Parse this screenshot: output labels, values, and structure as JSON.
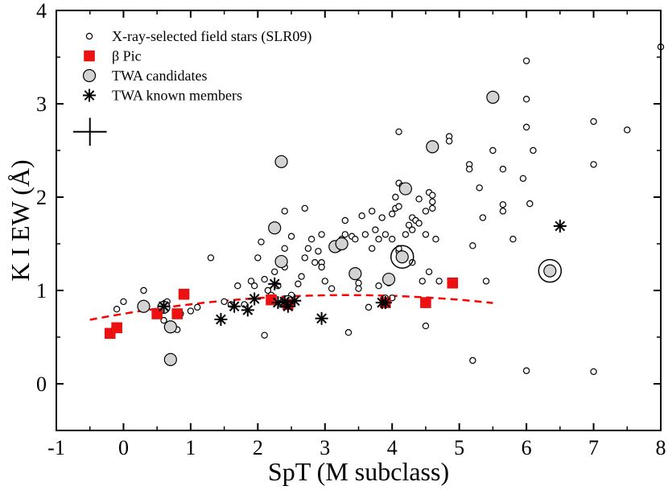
{
  "chart_data": {
    "type": "scatter",
    "xlabel": "SpT (M subclass)",
    "ylabel": "K I EW (Å)",
    "xlim": [
      -1,
      8
    ],
    "ylim": [
      -0.5,
      4
    ],
    "xticks": [
      -1,
      0,
      1,
      2,
      3,
      4,
      5,
      6,
      7,
      8
    ],
    "yticks": [
      0,
      1,
      2,
      3,
      4
    ],
    "xtick_labels": [
      "-1",
      "0",
      "1",
      "2",
      "3",
      "4",
      "5",
      "6",
      "7",
      "8"
    ],
    "ytick_labels": [
      "0",
      "1",
      "2",
      "3",
      "4"
    ],
    "legend": [
      {
        "label": "X-ray-selected field stars (SLR09)",
        "marker": "small-open-circle"
      },
      {
        "label": "β Pic",
        "marker": "red-square"
      },
      {
        "label": "TWA candidates",
        "marker": "gray-circle"
      },
      {
        "label": "TWA known members",
        "marker": "asterisk"
      }
    ],
    "error_bar": {
      "x": -0.5,
      "y": 2.7,
      "dx": 0.25,
      "dy": 0.15
    },
    "series": [
      {
        "name": "X-ray-selected field stars (SLR09)",
        "points": [
          [
            -0.1,
            0.8
          ],
          [
            0.0,
            0.88
          ],
          [
            0.3,
            1.0
          ],
          [
            0.6,
            0.68
          ],
          [
            0.65,
            0.88
          ],
          [
            0.8,
            0.58
          ],
          [
            0.85,
            0.75
          ],
          [
            1.0,
            0.78
          ],
          [
            1.1,
            0.82
          ],
          [
            1.3,
            1.35
          ],
          [
            1.5,
            0.88
          ],
          [
            1.6,
            0.85
          ],
          [
            1.7,
            1.05
          ],
          [
            1.8,
            0.85
          ],
          [
            1.9,
            1.1
          ],
          [
            1.95,
            1.05
          ],
          [
            2.0,
            1.35
          ],
          [
            2.05,
            1.52
          ],
          [
            2.1,
            0.52
          ],
          [
            2.1,
            1.12
          ],
          [
            2.15,
            1.0
          ],
          [
            2.2,
            0.95
          ],
          [
            2.25,
            1.2
          ],
          [
            2.3,
            1.05
          ],
          [
            2.35,
            0.85
          ],
          [
            2.4,
            1.25
          ],
          [
            2.4,
            1.45
          ],
          [
            2.4,
            1.85
          ],
          [
            2.5,
            1.58
          ],
          [
            2.5,
            0.95
          ],
          [
            2.6,
            1.07
          ],
          [
            2.65,
            1.15
          ],
          [
            2.7,
            1.35
          ],
          [
            2.7,
            1.88
          ],
          [
            2.75,
            1.45
          ],
          [
            2.8,
            1.55
          ],
          [
            2.85,
            1.3
          ],
          [
            2.9,
            1.42
          ],
          [
            2.95,
            1.3
          ],
          [
            2.95,
            1.6
          ],
          [
            3.0,
            1.1
          ],
          [
            3.1,
            1.02
          ],
          [
            3.2,
            1.45
          ],
          [
            3.25,
            1.55
          ],
          [
            3.3,
            1.6
          ],
          [
            3.3,
            1.75
          ],
          [
            3.35,
            0.55
          ],
          [
            3.4,
            1.58
          ],
          [
            3.45,
            1.55
          ],
          [
            3.5,
            1.08
          ],
          [
            3.5,
            1.02
          ],
          [
            3.55,
            1.8
          ],
          [
            3.6,
            1.6
          ],
          [
            3.65,
            0.82
          ],
          [
            3.7,
            1.45
          ],
          [
            3.7,
            1.85
          ],
          [
            3.75,
            1.65
          ],
          [
            3.8,
            1.55
          ],
          [
            3.8,
            1.05
          ],
          [
            3.85,
            1.78
          ],
          [
            3.9,
            1.6
          ],
          [
            3.9,
            0.92
          ],
          [
            4.0,
            1.55
          ],
          [
            4.0,
            1.82
          ],
          [
            4.05,
            1.88
          ],
          [
            4.05,
            2.0
          ],
          [
            4.1,
            1.42
          ],
          [
            4.1,
            1.45
          ],
          [
            4.1,
            1.9
          ],
          [
            4.1,
            2.15
          ],
          [
            4.15,
            2.12
          ],
          [
            4.2,
            1.6
          ],
          [
            4.25,
            1.7
          ],
          [
            4.3,
            1.78
          ],
          [
            4.3,
            1.3
          ],
          [
            4.3,
            1.65
          ],
          [
            4.35,
            1.75
          ],
          [
            4.4,
            1.98
          ],
          [
            4.4,
            1.72
          ],
          [
            4.45,
            1.1
          ],
          [
            4.5,
            1.85
          ],
          [
            4.5,
            1.6
          ],
          [
            4.55,
            2.05
          ],
          [
            4.55,
            1.2
          ],
          [
            4.6,
            1.95
          ],
          [
            4.6,
            2.02
          ],
          [
            4.6,
            1.88
          ],
          [
            4.65,
            1.55
          ],
          [
            4.7,
            1.1
          ],
          [
            4.1,
            2.7
          ],
          [
            4.5,
            0.62
          ],
          [
            4.85,
            2.65
          ],
          [
            4.85,
            2.6
          ],
          [
            5.15,
            2.35
          ],
          [
            5.15,
            2.3
          ],
          [
            5.2,
            1.48
          ],
          [
            5.2,
            0.25
          ],
          [
            5.3,
            2.1
          ],
          [
            5.35,
            1.78
          ],
          [
            5.4,
            1.1
          ],
          [
            5.5,
            2.5
          ],
          [
            5.65,
            2.3
          ],
          [
            5.65,
            1.92
          ],
          [
            5.65,
            1.85
          ],
          [
            5.8,
            1.55
          ],
          [
            5.95,
            2.2
          ],
          [
            6.0,
            3.46
          ],
          [
            6.0,
            3.05
          ],
          [
            6.0,
            2.75
          ],
          [
            6.0,
            0.14
          ],
          [
            6.05,
            1.93
          ],
          [
            6.1,
            2.5
          ],
          [
            7.0,
            2.81
          ],
          [
            7.0,
            2.35
          ],
          [
            7.0,
            0.13
          ],
          [
            7.5,
            2.72
          ],
          [
            8.0,
            3.61
          ],
          [
            4.0,
            0.92
          ],
          [
            3.95,
            1.08
          ],
          [
            2.95,
            1.25
          ]
        ]
      },
      {
        "name": "β Pic",
        "points": [
          [
            -0.2,
            0.54
          ],
          [
            -0.1,
            0.6
          ],
          [
            0.5,
            0.75
          ],
          [
            0.8,
            0.75
          ],
          [
            0.9,
            0.96
          ],
          [
            2.2,
            0.9
          ],
          [
            2.45,
            0.85
          ],
          [
            3.9,
            0.87
          ],
          [
            4.5,
            0.87
          ],
          [
            4.9,
            1.08
          ]
        ]
      },
      {
        "name": "TWA candidates",
        "points": [
          [
            0.3,
            0.83
          ],
          [
            0.6,
            0.82
          ],
          [
            0.7,
            0.61
          ],
          [
            0.7,
            0.26
          ],
          [
            2.25,
            1.67
          ],
          [
            2.35,
            2.38
          ],
          [
            2.35,
            1.31
          ],
          [
            2.45,
            0.88
          ],
          [
            3.15,
            1.47
          ],
          [
            3.25,
            1.5
          ],
          [
            3.45,
            1.18
          ],
          [
            3.95,
            1.12
          ],
          [
            4.2,
            2.09
          ],
          [
            4.15,
            1.36
          ],
          [
            4.6,
            2.54
          ],
          [
            5.5,
            3.07
          ],
          [
            6.35,
            1.21
          ]
        ]
      },
      {
        "name": "TWA known members",
        "points": [
          [
            0.6,
            0.83
          ],
          [
            1.45,
            0.69
          ],
          [
            1.65,
            0.83
          ],
          [
            1.85,
            0.79
          ],
          [
            1.95,
            0.91
          ],
          [
            2.25,
            1.07
          ],
          [
            2.3,
            0.87
          ],
          [
            2.4,
            0.88
          ],
          [
            2.45,
            0.83
          ],
          [
            2.55,
            0.89
          ],
          [
            2.95,
            0.7
          ],
          [
            3.85,
            0.87
          ],
          [
            3.9,
            0.87
          ],
          [
            6.5,
            1.69
          ]
        ]
      }
    ],
    "highlighted": [
      [
        4.15,
        1.36
      ],
      [
        6.35,
        1.21
      ]
    ],
    "fit_curve": {
      "style": "dashed",
      "color": "#ff0000",
      "x_range": [
        -0.5,
        5.5
      ],
      "coeffs": [
        0.75,
        0.12,
        -0.018
      ]
    }
  }
}
